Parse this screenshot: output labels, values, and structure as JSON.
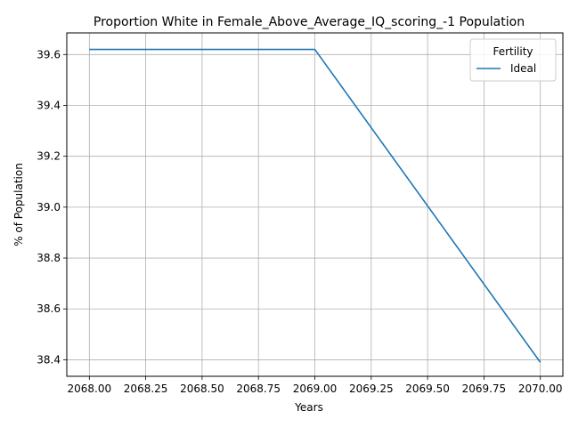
{
  "chart_data": {
    "type": "line",
    "title": "Proportion White in Female_Above_Average_IQ_scoring_-1 Population",
    "xlabel": "Years",
    "ylabel": "% of Population",
    "xlim": [
      2067.9,
      2070.1
    ],
    "ylim": [
      38.335,
      39.685
    ],
    "xticks": [
      2068.0,
      2068.25,
      2068.5,
      2068.75,
      2069.0,
      2069.25,
      2069.5,
      2069.75,
      2070.0
    ],
    "xtick_labels": [
      "2068.00",
      "2068.25",
      "2068.50",
      "2068.75",
      "2069.00",
      "2069.25",
      "2069.50",
      "2069.75",
      "2070.00"
    ],
    "yticks": [
      38.4,
      38.6,
      38.8,
      39.0,
      39.2,
      39.4,
      39.6
    ],
    "ytick_labels": [
      "38.4",
      "38.6",
      "38.8",
      "39.0",
      "39.2",
      "39.4",
      "39.6"
    ],
    "grid": true,
    "legend": {
      "title": "Fertility",
      "placement": "top-right"
    },
    "series": [
      {
        "name": "Ideal",
        "color": "#1f77b4",
        "x": [
          2068,
          2069,
          2070
        ],
        "y": [
          39.62,
          39.62,
          38.39
        ]
      }
    ]
  }
}
